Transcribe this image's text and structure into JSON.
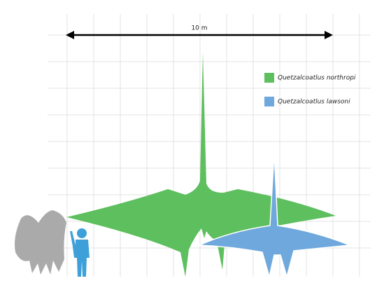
{
  "scale_label": "10 m",
  "legend": [
    {
      "label": "Quetzalcoatlus northropi",
      "color": "#5dbf5d"
    },
    {
      "label": "Quetzalcoatlus lawsoni",
      "color": "#6fa8dc"
    }
  ]
}
